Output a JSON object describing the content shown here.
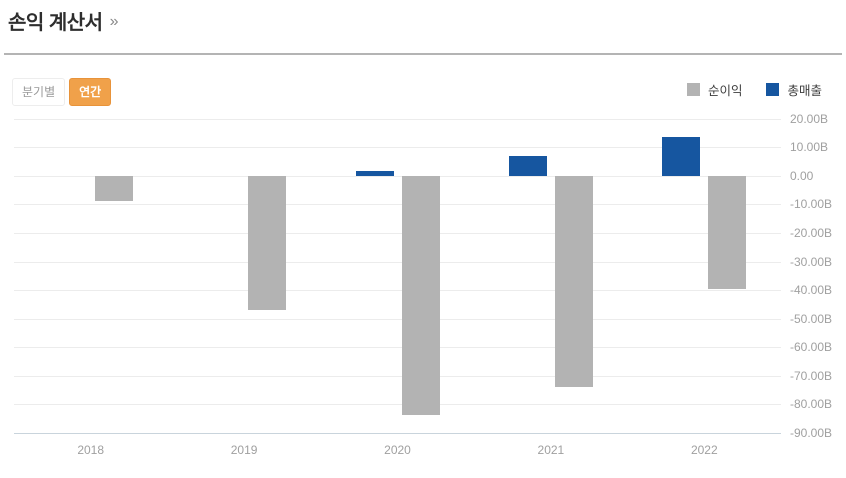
{
  "header": {
    "title": "손익 계산서",
    "more_icon": "»"
  },
  "controls": {
    "quarterly_label": "분기별",
    "annual_label": "연간",
    "active": "annual"
  },
  "legend": [
    {
      "label": "순이익",
      "color": "#b3b3b3"
    },
    {
      "label": "총매출",
      "color": "#1656a0"
    }
  ],
  "colors": {
    "net_income": "#b3b3b3",
    "revenue": "#1656a0",
    "accent_orange": "#f0a14a",
    "gridline": "#ececec",
    "axis_line": "#c9d4dc",
    "divider": "#b4b4b4",
    "tick_text": "#a0a0a0"
  },
  "chart_data": {
    "type": "bar",
    "title": "손익 계산서 (연간)",
    "categories": [
      "2018",
      "2019",
      "2020",
      "2021",
      "2022"
    ],
    "series": [
      {
        "name": "순이익",
        "color_key": "net_income",
        "values": [
          -8.7,
          -47.0,
          -83.8,
          -73.8,
          -39.5
        ]
      },
      {
        "name": "총매출",
        "color_key": "revenue",
        "values": [
          0,
          0,
          1.6,
          6.8,
          13.7
        ]
      }
    ],
    "unit": "B",
    "ylim": [
      -90,
      20
    ],
    "ytick_step": 10,
    "ytick_labels": [
      "20.00B",
      "10.00B",
      "0.00",
      "-10.00B",
      "-20.00B",
      "-30.00B",
      "-40.00B",
      "-50.00B",
      "-60.00B",
      "-70.00B",
      "-80.00B",
      "-90.00B"
    ],
    "grid": true,
    "legend_position": "top-right",
    "y_axis_side": "right"
  }
}
